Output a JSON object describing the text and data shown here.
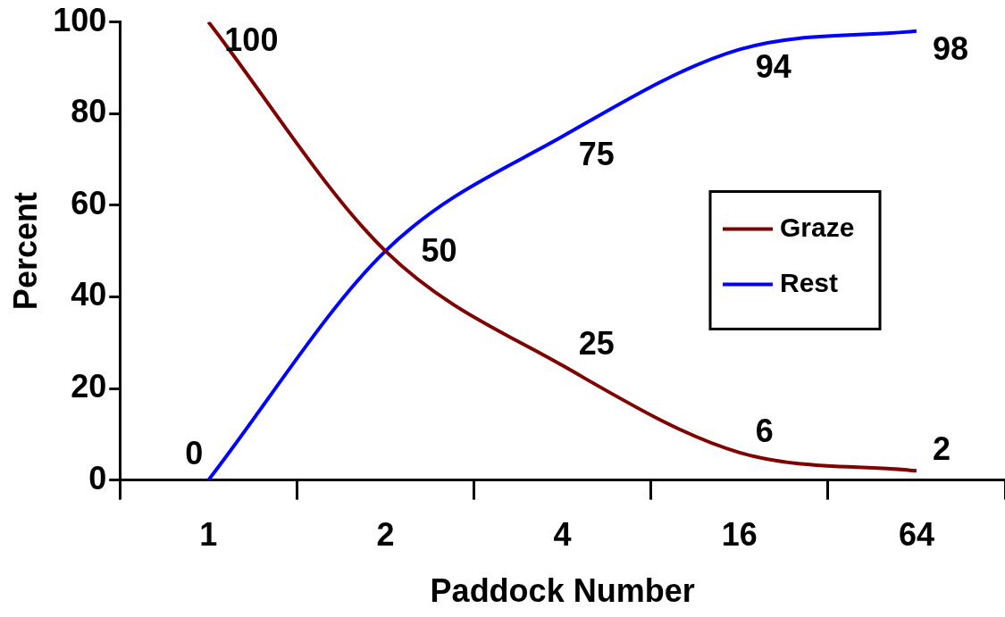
{
  "chart_data": {
    "type": "line",
    "xlabel": "Paddock Number",
    "ylabel": "Percent",
    "categories": [
      "1",
      "2",
      "4",
      "16",
      "64"
    ],
    "series": [
      {
        "name": "Graze",
        "color": "#7f0000",
        "values": [
          100,
          50,
          25,
          6,
          2
        ],
        "value_labels": [
          "100",
          "50",
          "25",
          "6",
          "2"
        ]
      },
      {
        "name": "Rest",
        "color": "#0000ff",
        "values": [
          0,
          50,
          75,
          94,
          98
        ],
        "value_labels": [
          "0",
          null,
          "75",
          "94",
          "98"
        ]
      }
    ],
    "ylim": [
      0,
      100
    ],
    "yticks": [
      0,
      20,
      40,
      60,
      80,
      100
    ],
    "grid": false,
    "legend": "right",
    "marker": "none",
    "line_style": "solid"
  }
}
